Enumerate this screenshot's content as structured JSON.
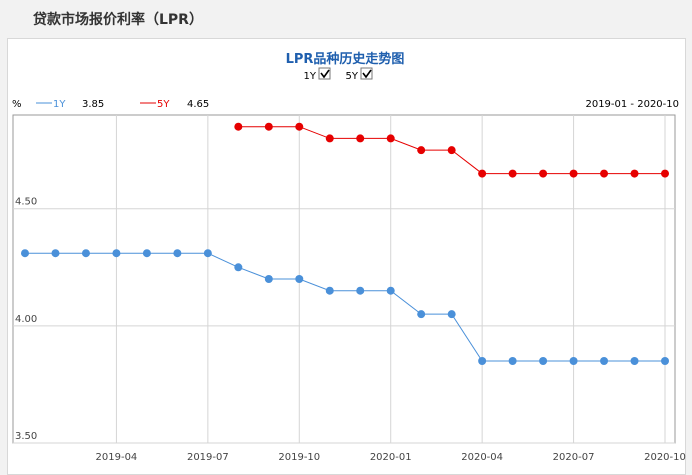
{
  "page": {
    "title": "贷款市场报价利率（LPR）"
  },
  "chart_data": {
    "type": "line",
    "title": "LPR品种历史走势图",
    "ylabel": "%",
    "date_range": "2019-01 - 2020-10",
    "ylim": [
      3.5,
      4.9
    ],
    "yticks": [
      {
        "value": 3.5,
        "label": "3.50"
      },
      {
        "value": 4.0,
        "label": "4.00"
      },
      {
        "value": 4.5,
        "label": "4.50"
      }
    ],
    "x": [
      "2019-01",
      "2019-02",
      "2019-03",
      "2019-04",
      "2019-05",
      "2019-06",
      "2019-07",
      "2019-08",
      "2019-09",
      "2019-10",
      "2019-11",
      "2019-12",
      "2020-01",
      "2020-02",
      "2020-03",
      "2020-04",
      "2020-05",
      "2020-06",
      "2020-07",
      "2020-08",
      "2020-09",
      "2020-10"
    ],
    "xticks": [
      {
        "index": 3,
        "label": "2019-04"
      },
      {
        "index": 6,
        "label": "2019-07"
      },
      {
        "index": 9,
        "label": "2019-10"
      },
      {
        "index": 12,
        "label": "2020-01"
      },
      {
        "index": 15,
        "label": "2020-04"
      },
      {
        "index": 18,
        "label": "2020-07"
      },
      {
        "index": 21,
        "label": "2020-10"
      }
    ],
    "series": [
      {
        "name": "1Y",
        "latest": "3.85",
        "checkbox_label": "1Y",
        "checked": true,
        "color": "#4a90d9",
        "values": [
          4.31,
          4.31,
          4.31,
          4.31,
          4.31,
          4.31,
          4.31,
          4.25,
          4.2,
          4.2,
          4.15,
          4.15,
          4.15,
          4.05,
          4.05,
          3.85,
          3.85,
          3.85,
          3.85,
          3.85,
          3.85,
          3.85
        ]
      },
      {
        "name": "5Y",
        "latest": "4.65",
        "checkbox_label": "5Y",
        "checked": true,
        "color": "#e60000",
        "values": [
          null,
          null,
          null,
          null,
          null,
          null,
          null,
          4.85,
          4.85,
          4.85,
          4.8,
          4.8,
          4.8,
          4.75,
          4.75,
          4.65,
          4.65,
          4.65,
          4.65,
          4.65,
          4.65,
          4.65
        ]
      }
    ],
    "grid": true
  }
}
